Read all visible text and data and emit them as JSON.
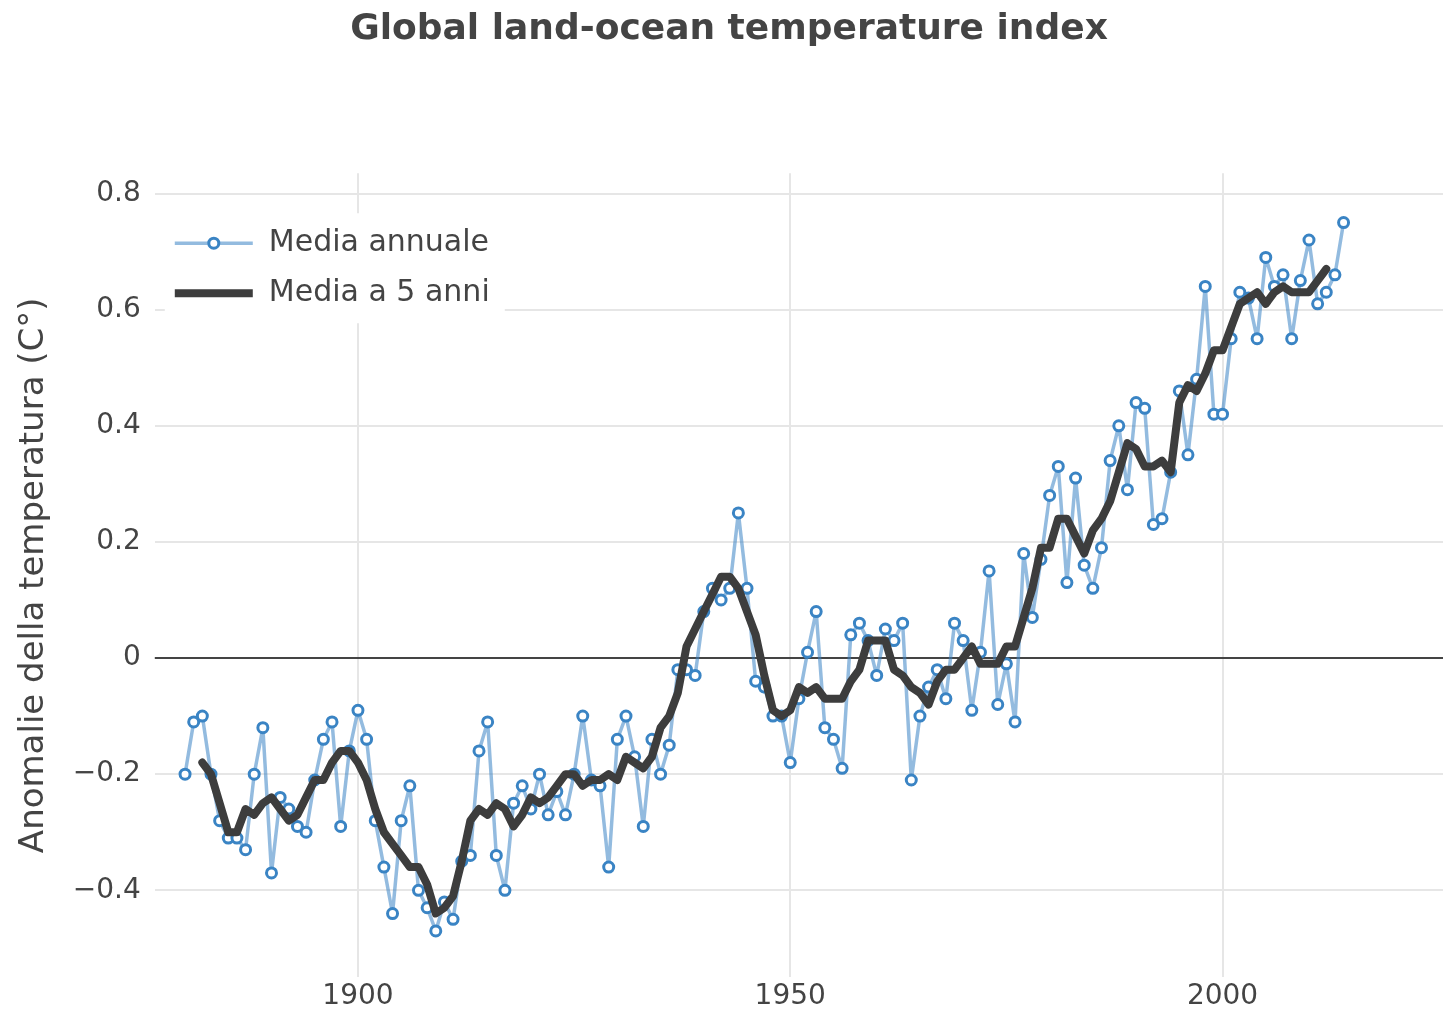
{
  "chart_data": {
    "type": "line",
    "title": "Global land-ocean temperature index",
    "ylabel": "Anomalie della temperatura (C°)",
    "xlim": [
      1876.5,
      2025.5
    ],
    "xticks": [
      1900,
      1950,
      2000
    ],
    "ylim": [
      -0.55,
      0.835
    ],
    "yticks": [
      {
        "value": -0.4,
        "label": "−0.4"
      },
      {
        "value": -0.2,
        "label": "−0.2"
      },
      0,
      0.2,
      0.4,
      0.6,
      0.8
    ],
    "grid": true,
    "legend": "top left",
    "ref_lines": [
      {
        "axis": "y",
        "value": 0,
        "color": "#444444"
      }
    ],
    "series": [
      {
        "name": "Media annuale",
        "color": "#3a84c4",
        "marker": "circle",
        "x": [
          1880,
          1881,
          1882,
          1883,
          1884,
          1885,
          1886,
          1887,
          1888,
          1889,
          1890,
          1891,
          1892,
          1893,
          1894,
          1895,
          1896,
          1897,
          1898,
          1899,
          1900,
          1901,
          1902,
          1903,
          1904,
          1905,
          1906,
          1907,
          1908,
          1909,
          1910,
          1911,
          1912,
          1913,
          1914,
          1915,
          1916,
          1917,
          1918,
          1919,
          1920,
          1921,
          1922,
          1923,
          1924,
          1925,
          1926,
          1927,
          1928,
          1929,
          1930,
          1931,
          1932,
          1933,
          1934,
          1935,
          1936,
          1937,
          1938,
          1939,
          1940,
          1941,
          1942,
          1943,
          1944,
          1945,
          1946,
          1947,
          1948,
          1949,
          1950,
          1951,
          1952,
          1953,
          1954,
          1955,
          1956,
          1957,
          1958,
          1959,
          1960,
          1961,
          1962,
          1963,
          1964,
          1965,
          1966,
          1967,
          1968,
          1969,
          1970,
          1971,
          1972,
          1973,
          1974,
          1975,
          1976,
          1977,
          1978,
          1979,
          1980,
          1981,
          1982,
          1983,
          1984,
          1985,
          1986,
          1987,
          1988,
          1989,
          1990,
          1991,
          1992,
          1993,
          1994,
          1995,
          1996,
          1997,
          1998,
          1999,
          2000,
          2001,
          2002,
          2003,
          2004,
          2005,
          2006,
          2007,
          2008,
          2009,
          2010,
          2011,
          2012,
          2013,
          2014
        ],
        "values": [
          -0.2,
          -0.11,
          -0.1,
          -0.2,
          -0.28,
          -0.31,
          -0.31,
          -0.33,
          -0.2,
          -0.12,
          -0.37,
          -0.24,
          -0.26,
          -0.29,
          -0.3,
          -0.21,
          -0.14,
          -0.11,
          -0.29,
          -0.16,
          -0.09,
          -0.14,
          -0.28,
          -0.36,
          -0.44,
          -0.28,
          -0.22,
          -0.4,
          -0.43,
          -0.47,
          -0.42,
          -0.45,
          -0.35,
          -0.34,
          -0.16,
          -0.11,
          -0.34,
          -0.4,
          -0.25,
          -0.22,
          -0.26,
          -0.2,
          -0.27,
          -0.23,
          -0.27,
          -0.2,
          -0.1,
          -0.21,
          -0.22,
          -0.36,
          -0.14,
          -0.1,
          -0.17,
          -0.29,
          -0.14,
          -0.2,
          -0.15,
          -0.02,
          -0.02,
          -0.03,
          0.08,
          0.12,
          0.1,
          0.12,
          0.25,
          0.12,
          -0.04,
          -0.05,
          -0.1,
          -0.1,
          -0.18,
          -0.07,
          0.01,
          0.08,
          -0.12,
          -0.14,
          -0.19,
          0.04,
          0.06,
          0.03,
          -0.03,
          0.05,
          0.03,
          0.06,
          -0.21,
          -0.1,
          -0.05,
          -0.02,
          -0.07,
          0.06,
          0.03,
          -0.09,
          0.01,
          0.15,
          -0.08,
          -0.01,
          -0.11,
          0.18,
          0.07,
          0.17,
          0.28,
          0.33,
          0.13,
          0.31,
          0.16,
          0.12,
          0.19,
          0.34,
          0.4,
          0.29,
          0.44,
          0.43,
          0.23,
          0.24,
          0.32,
          0.46,
          0.35,
          0.48,
          0.64,
          0.42,
          0.42,
          0.55,
          0.63,
          0.62,
          0.55,
          0.69,
          0.64,
          0.66,
          0.55,
          0.65,
          0.72,
          0.61,
          0.63,
          0.66,
          0.75
        ]
      },
      {
        "name": "Media a 5 anni",
        "color": "#3d3d3d",
        "marker": "none",
        "x": [
          1882,
          1883,
          1884,
          1885,
          1886,
          1887,
          1888,
          1889,
          1890,
          1891,
          1892,
          1893,
          1894,
          1895,
          1896,
          1897,
          1898,
          1899,
          1900,
          1901,
          1902,
          1903,
          1904,
          1905,
          1906,
          1907,
          1908,
          1909,
          1910,
          1911,
          1912,
          1913,
          1914,
          1915,
          1916,
          1917,
          1918,
          1919,
          1920,
          1921,
          1922,
          1923,
          1924,
          1925,
          1926,
          1927,
          1928,
          1929,
          1930,
          1931,
          1932,
          1933,
          1934,
          1935,
          1936,
          1937,
          1938,
          1939,
          1940,
          1941,
          1942,
          1943,
          1944,
          1945,
          1946,
          1947,
          1948,
          1949,
          1950,
          1951,
          1952,
          1953,
          1954,
          1955,
          1956,
          1957,
          1958,
          1959,
          1960,
          1961,
          1962,
          1963,
          1964,
          1965,
          1966,
          1967,
          1968,
          1969,
          1970,
          1971,
          1972,
          1973,
          1974,
          1975,
          1976,
          1977,
          1978,
          1979,
          1980,
          1981,
          1982,
          1983,
          1984,
          1985,
          1986,
          1987,
          1988,
          1989,
          1990,
          1991,
          1992,
          1993,
          1994,
          1995,
          1996,
          1997,
          1998,
          1999,
          2000,
          2001,
          2002,
          2003,
          2004,
          2005,
          2006,
          2007,
          2008,
          2009,
          2010,
          2011,
          2012
        ],
        "values": [
          -0.18,
          -0.2,
          -0.25,
          -0.3,
          -0.3,
          -0.26,
          -0.27,
          -0.25,
          -0.24,
          -0.26,
          -0.28,
          -0.27,
          -0.24,
          -0.21,
          -0.21,
          -0.18,
          -0.16,
          -0.16,
          -0.18,
          -0.21,
          -0.26,
          -0.3,
          -0.32,
          -0.34,
          -0.36,
          -0.36,
          -0.39,
          -0.44,
          -0.43,
          -0.41,
          -0.35,
          -0.28,
          -0.26,
          -0.27,
          -0.25,
          -0.26,
          -0.29,
          -0.27,
          -0.24,
          -0.25,
          -0.24,
          -0.22,
          -0.2,
          -0.2,
          -0.22,
          -0.21,
          -0.21,
          -0.2,
          -0.21,
          -0.17,
          -0.18,
          -0.19,
          -0.17,
          -0.12,
          -0.1,
          -0.06,
          0.02,
          0.05,
          0.08,
          0.11,
          0.14,
          0.14,
          0.12,
          0.08,
          0.04,
          -0.03,
          -0.09,
          -0.1,
          -0.09,
          -0.05,
          -0.06,
          -0.05,
          -0.07,
          -0.07,
          -0.07,
          -0.04,
          -0.02,
          0.03,
          0.03,
          0.03,
          -0.02,
          -0.03,
          -0.05,
          -0.06,
          -0.08,
          -0.04,
          -0.02,
          -0.02,
          0.0,
          0.02,
          -0.01,
          -0.01,
          -0.01,
          0.02,
          0.02,
          0.07,
          0.12,
          0.19,
          0.19,
          0.24,
          0.24,
          0.21,
          0.18,
          0.22,
          0.24,
          0.27,
          0.32,
          0.37,
          0.36,
          0.33,
          0.33,
          0.34,
          0.32,
          0.44,
          0.47,
          0.46,
          0.49,
          0.53,
          0.53,
          0.57,
          0.61,
          0.62,
          0.63,
          0.61,
          0.63,
          0.64,
          0.63,
          0.63,
          0.63,
          0.65,
          0.67
        ]
      }
    ]
  }
}
